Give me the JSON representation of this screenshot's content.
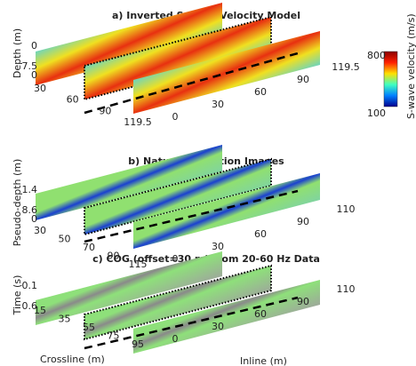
{
  "panels": [
    {
      "title": "a) Inverted S-wave Velocity Model",
      "y_label": "Depth (m)",
      "y_ticks": [
        "0",
        "7.5",
        "0"
      ],
      "crossline_ticks": [
        "30",
        "60",
        "90",
        "119.5"
      ],
      "inline_ticks": [
        "0",
        "30",
        "60",
        "90",
        "119.5"
      ]
    },
    {
      "title": "b) Natural Migration Images",
      "y_label": "Pseudo-depth (m)",
      "y_ticks": [
        "1.4",
        "8.6",
        "0"
      ],
      "crossline_ticks": [
        "30",
        "50",
        "70",
        "90",
        "115"
      ],
      "inline_ticks": [
        "0",
        "30",
        "60",
        "90",
        "110"
      ]
    },
    {
      "title": "c) COG (offset=30 m) from 20-60 Hz Data",
      "y_label": "Time (s)",
      "y_ticks": [
        "0.1",
        "0.6"
      ],
      "crossline_ticks": [
        "15",
        "35",
        "55",
        "75",
        "95"
      ],
      "inline_ticks": [
        "0",
        "30",
        "60",
        "90",
        "110"
      ]
    }
  ],
  "colorbar": {
    "max": "800",
    "min": "100",
    "label": "S-wave velocity (m/s)"
  },
  "axis_labels": {
    "crossline": "Crossline (m)",
    "inline": "Inline (m)"
  }
}
